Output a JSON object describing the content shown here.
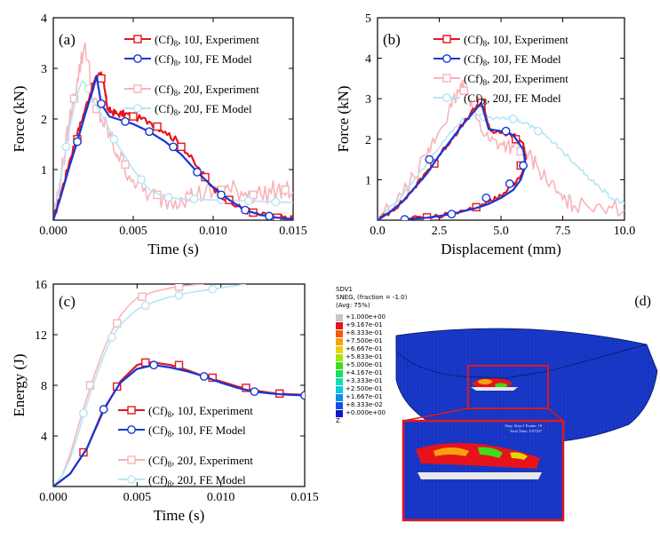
{
  "chart_data": [
    {
      "type": "line",
      "panel_label": "(a)",
      "xlabel": "Time (s)",
      "ylabel": "Force (kN)",
      "xlim": [
        0,
        0.015
      ],
      "ylim": [
        0,
        4
      ],
      "xticks": [
        "0.000",
        "0.005",
        "0.010",
        "0.015"
      ],
      "yticks": [
        "1",
        "2",
        "3",
        "4"
      ],
      "series": [
        {
          "name": "(Cf)8, 10J, Experiment",
          "color": "#e8141c",
          "marker": "square",
          "noise": 0.07,
          "x": [
            0,
            0.0005,
            0.001,
            0.0015,
            0.002,
            0.0025,
            0.0028,
            0.003,
            0.0032,
            0.0034,
            0.0036,
            0.004,
            0.0045,
            0.005,
            0.006,
            0.007,
            0.008,
            0.009,
            0.01,
            0.011,
            0.012,
            0.013,
            0.014,
            0.015
          ],
          "y": [
            0,
            0.55,
            1.15,
            1.7,
            2.2,
            2.7,
            2.85,
            2.9,
            2.6,
            2.2,
            2.15,
            2.1,
            2.1,
            2.05,
            1.95,
            1.75,
            1.5,
            1.05,
            0.65,
            0.35,
            0.2,
            0.1,
            0.05,
            0.02
          ],
          "markers_x": [
            0.0015,
            0.003,
            0.005,
            0.0065,
            0.008,
            0.0095,
            0.011,
            0.0125,
            0.014
          ],
          "markers_y": [
            1.6,
            2.8,
            2.05,
            1.85,
            1.45,
            0.85,
            0.4,
            0.15,
            0.05
          ]
        },
        {
          "name": "(Cf)8, 10J, FE Model",
          "color": "#1437d6",
          "marker": "circle",
          "noise": 0.0,
          "x": [
            0,
            0.0005,
            0.001,
            0.0015,
            0.002,
            0.0025,
            0.0027,
            0.003,
            0.0035,
            0.004,
            0.005,
            0.006,
            0.007,
            0.008,
            0.009,
            0.01,
            0.011,
            0.012,
            0.013,
            0.014,
            0.015
          ],
          "y": [
            0,
            0.5,
            1.05,
            1.55,
            2.1,
            2.6,
            2.85,
            2.3,
            2.05,
            2.0,
            1.9,
            1.75,
            1.55,
            1.3,
            0.95,
            0.65,
            0.4,
            0.2,
            0.1,
            0.05,
            0.02
          ],
          "markers_x": [
            0.0015,
            0.003,
            0.0045,
            0.006,
            0.0075,
            0.009,
            0.0105,
            0.012,
            0.0135
          ],
          "markers_y": [
            1.55,
            2.3,
            1.95,
            1.75,
            1.45,
            0.95,
            0.5,
            0.2,
            0.08
          ]
        },
        {
          "name": "(Cf)8, 20J, Experiment",
          "color": "#f8b4b8",
          "marker": "square",
          "noise": 0.22,
          "x": [
            0,
            0.0005,
            0.001,
            0.0015,
            0.002,
            0.0025,
            0.003,
            0.0035,
            0.004,
            0.005,
            0.006,
            0.007,
            0.008,
            0.009,
            0.01,
            0.011,
            0.012,
            0.013,
            0.014,
            0.015
          ],
          "y": [
            0,
            0.9,
            1.9,
            2.8,
            3.5,
            2.4,
            2.0,
            1.7,
            1.3,
            0.8,
            0.5,
            0.4,
            0.45,
            0.5,
            0.55,
            0.6,
            0.55,
            0.5,
            0.6,
            0.55
          ],
          "markers_x": [
            0.0013,
            0.0027,
            0.0045,
            0.0065,
            0.0085,
            0.0105,
            0.0125,
            0.0145
          ],
          "markers_y": [
            2.4,
            2.2,
            1.1,
            0.5,
            0.45,
            0.6,
            0.5,
            0.6
          ]
        },
        {
          "name": "(Cf)8, 20J, FE Model",
          "color": "#b8e4f4",
          "marker": "circle",
          "noise": 0.0,
          "x": [
            0,
            0.0005,
            0.001,
            0.0015,
            0.0018,
            0.002,
            0.0025,
            0.003,
            0.0035,
            0.004,
            0.005,
            0.006,
            0.007,
            0.008,
            0.01,
            0.012,
            0.015
          ],
          "y": [
            0,
            0.9,
            1.8,
            2.5,
            2.75,
            2.7,
            2.35,
            2.1,
            1.8,
            1.5,
            1.0,
            0.6,
            0.45,
            0.42,
            0.4,
            0.38,
            0.35
          ],
          "markers_x": [
            0.0008,
            0.0022,
            0.0038,
            0.0055,
            0.0072,
            0.0088,
            0.0105,
            0.0122,
            0.0139
          ],
          "markers_y": [
            1.45,
            2.6,
            1.6,
            0.8,
            0.45,
            0.42,
            0.4,
            0.38,
            0.36
          ]
        }
      ]
    },
    {
      "type": "line",
      "panel_label": "(b)",
      "xlabel": "Displacement (mm)",
      "ylabel": "Force (kN)",
      "xlim": [
        0,
        10
      ],
      "ylim": [
        0,
        5
      ],
      "xticks": [
        "0.0",
        "2.5",
        "5.0",
        "7.5",
        "10.0"
      ],
      "yticks": [
        "1",
        "2",
        "3",
        "4",
        "5"
      ],
      "series": [
        {
          "name": "(Cf)8, 10J, Experiment",
          "color": "#e8141c",
          "marker": "square",
          "noise": 0.06,
          "x": [
            0,
            0.5,
            1,
            1.5,
            2,
            2.5,
            3,
            3.5,
            4,
            4.3,
            4.4,
            4.6,
            5,
            5.5,
            5.9,
            6.0,
            5.8,
            5.5,
            5,
            4.5,
            4,
            3,
            2,
            1
          ],
          "y": [
            0,
            0.2,
            0.45,
            0.8,
            1.2,
            1.6,
            2.0,
            2.4,
            2.8,
            2.95,
            2.5,
            2.2,
            2.15,
            2.1,
            1.9,
            1.5,
            1.1,
            0.85,
            0.6,
            0.45,
            0.32,
            0.16,
            0.07,
            0.02
          ],
          "markers_x": [
            2.3,
            4.2,
            5.6,
            5.8,
            4.0,
            2.0
          ],
          "markers_y": [
            1.4,
            2.9,
            2.0,
            1.35,
            0.32,
            0.07
          ]
        },
        {
          "name": "(Cf)8, 10J, FE Model",
          "color": "#1437d6",
          "marker": "circle",
          "noise": 0.0,
          "x": [
            0,
            0.5,
            1,
            1.5,
            2,
            2.5,
            3,
            3.5,
            4,
            4.2,
            4.5,
            5,
            5.5,
            5.9,
            6.0,
            5.8,
            5.5,
            5,
            4.5,
            4,
            3,
            2,
            1
          ],
          "y": [
            0,
            0.2,
            0.45,
            0.8,
            1.15,
            1.6,
            2.0,
            2.4,
            2.75,
            2.9,
            2.25,
            2.2,
            2.1,
            1.75,
            1.35,
            1.0,
            0.75,
            0.55,
            0.4,
            0.3,
            0.15,
            0.06,
            0.02
          ],
          "markers_x": [
            2.1,
            5.2,
            5.9,
            5.35,
            4.4,
            3.0,
            1.1
          ],
          "markers_y": [
            1.5,
            2.2,
            1.35,
            0.9,
            0.55,
            0.15,
            0.02
          ]
        },
        {
          "name": "(Cf)8, 20J, Experiment",
          "color": "#f8b4b8",
          "marker": "square",
          "noise": 0.2,
          "x": [
            0,
            1,
            2,
            2.5,
            3,
            3.3,
            3.6,
            4,
            4.5,
            5,
            5.5,
            6,
            6.5,
            7,
            7.5,
            8,
            9,
            10
          ],
          "y": [
            0,
            0.6,
            1.6,
            2.2,
            2.8,
            3.2,
            3.3,
            2.5,
            2.0,
            1.9,
            1.8,
            1.7,
            1.3,
            0.9,
            0.5,
            0.35,
            0.4,
            0.25
          ],
          "markers_x": [
            3.5,
            5.8
          ],
          "markers_y": [
            3.2,
            1.7
          ]
        },
        {
          "name": "(Cf)8, 20J, FE Model",
          "color": "#b8e4f4",
          "marker": "circle",
          "noise": 0.06,
          "x": [
            0,
            1,
            2,
            3,
            3.5,
            4,
            4.5,
            5,
            5.5,
            6,
            6.5,
            7,
            7.5,
            8,
            8.5,
            9,
            9.5,
            10
          ],
          "y": [
            0,
            0.6,
            1.4,
            2.2,
            2.5,
            2.6,
            2.55,
            2.5,
            2.5,
            2.4,
            2.2,
            2.0,
            1.7,
            1.4,
            1.1,
            0.8,
            0.55,
            0.4
          ],
          "markers_x": [
            4.3,
            5.5,
            6.5
          ],
          "markers_y": [
            2.55,
            2.5,
            2.2
          ]
        }
      ]
    },
    {
      "type": "line",
      "panel_label": "(c)",
      "xlabel": "Time (s)",
      "ylabel": "Energy (J)",
      "xlim": [
        0,
        0.015
      ],
      "ylim": [
        0,
        16
      ],
      "xticks": [
        "0.000",
        "0.005",
        "0.010",
        "0.015"
      ],
      "yticks": [
        "4",
        "8",
        "12",
        "16"
      ],
      "series": [
        {
          "name": "(Cf)8, 10J, Experiment",
          "color": "#e8141c",
          "marker": "square",
          "noise": 0.0,
          "x": [
            0,
            0.001,
            0.002,
            0.003,
            0.004,
            0.005,
            0.0055,
            0.006,
            0.007,
            0.008,
            0.009,
            0.01,
            0.011,
            0.012,
            0.013,
            0.014,
            0.015
          ],
          "y": [
            0,
            1.0,
            3.0,
            6.0,
            8.3,
            9.6,
            9.8,
            9.8,
            9.6,
            9.2,
            8.7,
            8.3,
            7.9,
            7.6,
            7.4,
            7.3,
            7.25
          ],
          "markers_x": [
            0.0018,
            0.0038,
            0.0055,
            0.0075,
            0.0095,
            0.0115,
            0.0135
          ],
          "markers_y": [
            2.7,
            7.9,
            9.8,
            9.6,
            8.6,
            7.8,
            7.35
          ]
        },
        {
          "name": "(Cf)8, 10J, FE Model",
          "color": "#1437d6",
          "marker": "circle",
          "noise": 0.0,
          "x": [
            0,
            0.001,
            0.002,
            0.003,
            0.004,
            0.005,
            0.006,
            0.007,
            0.008,
            0.009,
            0.01,
            0.011,
            0.012,
            0.013,
            0.014,
            0.015
          ],
          "y": [
            0,
            1.0,
            3.0,
            6.1,
            8.2,
            9.3,
            9.6,
            9.4,
            9.1,
            8.7,
            8.2,
            7.8,
            7.5,
            7.35,
            7.25,
            7.2
          ],
          "markers_x": [
            0.003,
            0.006,
            0.009,
            0.012,
            0.015
          ],
          "markers_y": [
            6.1,
            9.6,
            8.7,
            7.5,
            7.2
          ]
        },
        {
          "name": "(Cf)8, 20J, Experiment",
          "color": "#f8b4b8",
          "marker": "square",
          "noise": 0.0,
          "x": [
            0,
            0.0005,
            0.001,
            0.0015,
            0.002,
            0.0025,
            0.003,
            0.0035,
            0.004,
            0.0045,
            0.005,
            0.006,
            0.007,
            0.008,
            0.009
          ],
          "y": [
            0,
            0.8,
            2.5,
            4.8,
            7.0,
            9.0,
            10.8,
            12.3,
            13.5,
            14.3,
            14.9,
            15.4,
            15.7,
            15.9,
            16.0
          ],
          "markers_x": [
            0.0022,
            0.0038,
            0.0053,
            0.0075
          ],
          "markers_y": [
            8.0,
            12.9,
            15.0,
            15.8
          ]
        },
        {
          "name": "(Cf)8, 20J, FE Model",
          "color": "#b8e4f4",
          "marker": "circle",
          "noise": 0.0,
          "x": [
            0,
            0.0005,
            0.001,
            0.0015,
            0.002,
            0.0025,
            0.003,
            0.0035,
            0.004,
            0.005,
            0.006,
            0.007,
            0.008,
            0.009,
            0.01,
            0.011,
            0.0115
          ],
          "y": [
            0,
            0.8,
            2.2,
            4.2,
            6.5,
            8.5,
            10.3,
            11.8,
            12.8,
            14.0,
            14.6,
            15.0,
            15.3,
            15.5,
            15.7,
            15.9,
            16.0
          ],
          "markers_x": [
            0.0018,
            0.0035,
            0.0055,
            0.0075,
            0.0095
          ],
          "markers_y": [
            5.8,
            11.8,
            14.3,
            15.1,
            15.6
          ]
        }
      ]
    }
  ],
  "panel_d": {
    "label": "(d)",
    "legend": {
      "title_lines": [
        "SDV1",
        "SNEG, (fraction = -1.0)",
        "(Avg: 75%)"
      ],
      "entries": [
        {
          "value": "+1.000e+00",
          "color": "#c8c8c8"
        },
        {
          "value": "+9.167e-01",
          "color": "#e6141a"
        },
        {
          "value": "+8.333e-01",
          "color": "#f25c0a"
        },
        {
          "value": "+7.500e-01",
          "color": "#f7a20a"
        },
        {
          "value": "+6.667e-01",
          "color": "#e8d40a"
        },
        {
          "value": "+5.833e-01",
          "color": "#9ee60a"
        },
        {
          "value": "+5.000e-01",
          "color": "#3edc1c"
        },
        {
          "value": "+4.167e-01",
          "color": "#10e060"
        },
        {
          "value": "+3.333e-01",
          "color": "#10e0b0"
        },
        {
          "value": "+2.500e-01",
          "color": "#10c8e6"
        },
        {
          "value": "+1.667e-01",
          "color": "#108ce6"
        },
        {
          "value": "+8.333e-02",
          "color": "#1050e6"
        },
        {
          "value": "+0.000e+00",
          "color": "#1414c8"
        }
      ],
      "axis_label": "Z"
    },
    "plate_color": "#1a3bd0",
    "zoom_box_color": "#e0161e",
    "zoom_caption_lines": [
      "Step: Step-1   Frame: 19",
      "Total Time: 0.0752?"
    ]
  },
  "legend_subscript": "8"
}
